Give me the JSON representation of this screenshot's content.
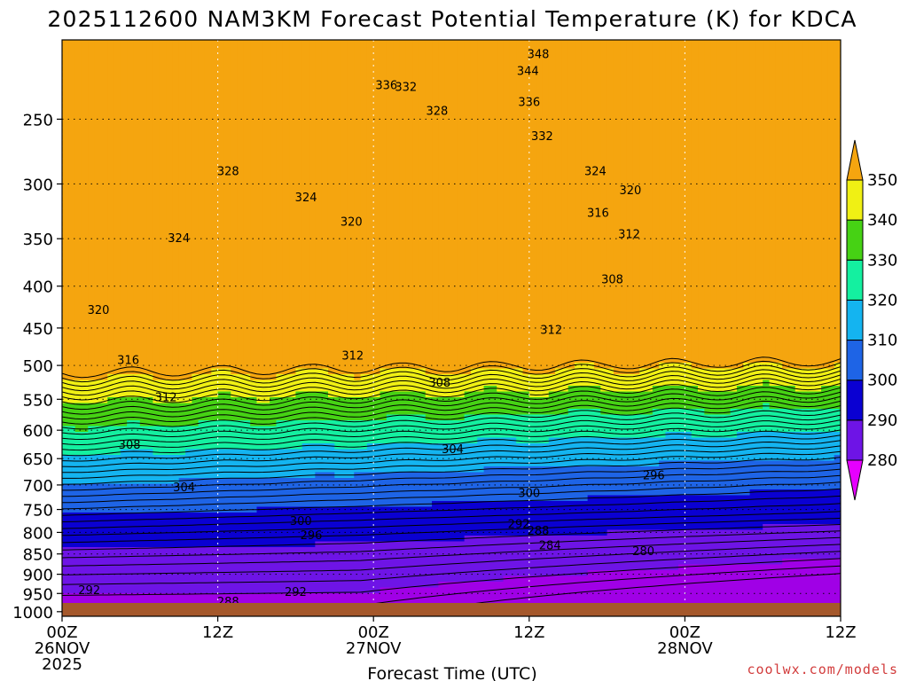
{
  "chart_data": {
    "type": "contour",
    "title": "2025112600 NAM3KM Forecast Potential Temperature (K) for KDCA",
    "xlabel": "Forecast Time (UTC)",
    "ylabel": "",
    "credit": "coolwx.com/models",
    "x_ticks": [
      {
        "hour": 0,
        "label": "00Z",
        "date": "26NOV",
        "year": "2025"
      },
      {
        "hour": 12,
        "label": "12Z",
        "date": "",
        "year": ""
      },
      {
        "hour": 24,
        "label": "00Z",
        "date": "27NOV",
        "year": ""
      },
      {
        "hour": 36,
        "label": "12Z",
        "date": "",
        "year": ""
      },
      {
        "hour": 48,
        "label": "00Z",
        "date": "28NOV",
        "year": ""
      },
      {
        "hour": 60,
        "label": "12Z",
        "date": "",
        "year": ""
      }
    ],
    "xlim": [
      0,
      60
    ],
    "y_ticks": [
      250,
      300,
      350,
      400,
      450,
      500,
      550,
      600,
      650,
      700,
      750,
      800,
      850,
      900,
      950,
      1000
    ],
    "ylim": [
      200,
      1013
    ],
    "yscale": "log-pressure",
    "colorbar": {
      "levels": [
        280,
        290,
        300,
        310,
        320,
        330,
        340,
        350
      ],
      "labels": [
        "280",
        "290",
        "300",
        "310",
        "320",
        "330",
        "340",
        "350"
      ],
      "colors": [
        "#a000e6",
        "#6e14e6",
        "#0a00d2",
        "#1e64e6",
        "#14b4f0",
        "#14f0a0",
        "#46d214",
        "#f0f014",
        "#f5a50f",
        "#e67814"
      ]
    },
    "contour_interval": 2,
    "contour_labels": [
      {
        "hour": 36.7,
        "pres": 208,
        "text": "348"
      },
      {
        "hour": 35.9,
        "pres": 218,
        "text": "344"
      },
      {
        "hour": 36.0,
        "pres": 238,
        "text": "336"
      },
      {
        "hour": 37.0,
        "pres": 262,
        "text": "332"
      },
      {
        "hour": 25.0,
        "pres": 227,
        "text": "336"
      },
      {
        "hour": 26.5,
        "pres": 228,
        "text": "332"
      },
      {
        "hour": 28.9,
        "pres": 244,
        "text": "328"
      },
      {
        "hour": 12.8,
        "pres": 289,
        "text": "328"
      },
      {
        "hour": 18.8,
        "pres": 311,
        "text": "324"
      },
      {
        "hour": 22.3,
        "pres": 333,
        "text": "320"
      },
      {
        "hour": 41.1,
        "pres": 289,
        "text": "324"
      },
      {
        "hour": 43.8,
        "pres": 305,
        "text": "320"
      },
      {
        "hour": 41.3,
        "pres": 325,
        "text": "316"
      },
      {
        "hour": 43.7,
        "pres": 345,
        "text": "312"
      },
      {
        "hour": 42.4,
        "pres": 392,
        "text": "308"
      },
      {
        "hour": 9.0,
        "pres": 349,
        "text": "324"
      },
      {
        "hour": 2.8,
        "pres": 427,
        "text": "320"
      },
      {
        "hour": 5.1,
        "pres": 492,
        "text": "316"
      },
      {
        "hour": 8.0,
        "pres": 546,
        "text": "312"
      },
      {
        "hour": 22.4,
        "pres": 486,
        "text": "312"
      },
      {
        "hour": 37.7,
        "pres": 452,
        "text": "312"
      },
      {
        "hour": 5.2,
        "pres": 624,
        "text": "308"
      },
      {
        "hour": 29.1,
        "pres": 524,
        "text": "308"
      },
      {
        "hour": 30.1,
        "pres": 632,
        "text": "304"
      },
      {
        "hour": 9.4,
        "pres": 704,
        "text": "304"
      },
      {
        "hour": 18.4,
        "pres": 774,
        "text": "300"
      },
      {
        "hour": 36.0,
        "pres": 715,
        "text": "300"
      },
      {
        "hour": 45.6,
        "pres": 680,
        "text": "296"
      },
      {
        "hour": 19.2,
        "pres": 805,
        "text": "296"
      },
      {
        "hour": 35.2,
        "pres": 780,
        "text": "292"
      },
      {
        "hour": 36.7,
        "pres": 795,
        "text": "288"
      },
      {
        "hour": 37.6,
        "pres": 829,
        "text": "284"
      },
      {
        "hour": 44.8,
        "pres": 842,
        "text": "280"
      },
      {
        "hour": 2.1,
        "pres": 940,
        "text": "292"
      },
      {
        "hour": 12.8,
        "pres": 971,
        "text": "288"
      },
      {
        "hour": 18.0,
        "pres": 945,
        "text": "292"
      }
    ]
  }
}
